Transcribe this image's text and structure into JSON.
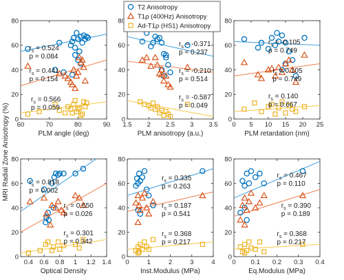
{
  "figure": {
    "ylabel": "MRI Radial Zone Anisotropy (%)"
  },
  "legend": {
    "position": "top-center",
    "entries": [
      {
        "label": "T2 Anisotropy",
        "marker": "circle",
        "color": "#0072BD"
      },
      {
        "label": "T1ρ (400Hz) Anisotropy",
        "marker": "triangle",
        "color": "#D95319"
      },
      {
        "label": "Ad-T1ρ (HS1) Anisotropy",
        "marker": "square",
        "color": "#EDB120"
      }
    ]
  },
  "colors": {
    "t2": "#0072BD",
    "t1rho": "#D95319",
    "adt1rho": "#EDB120",
    "t2_line": "#4DA6DF",
    "t1rho_line": "#F08A5E",
    "adt1rho_line": "#F7CE5B"
  },
  "chart_data": [
    {
      "type": "scatter",
      "xlabel": "PLM angle (deg)",
      "xlim": [
        60,
        90
      ],
      "ylim": [
        0,
        80
      ],
      "xticks": [
        "60",
        "70",
        "80",
        "90"
      ],
      "xtick_values": [
        60,
        70,
        80,
        90
      ],
      "yticks": [
        "0",
        "20",
        "40",
        "60",
        "80"
      ],
      "ytick_values": [
        0,
        20,
        40,
        60,
        80
      ],
      "grid": false,
      "series": [
        {
          "name": "T2 Anisotropy",
          "x": [
            62.5,
            73.5,
            77.5,
            78,
            78.5,
            79,
            79.5,
            80,
            80.5,
            81,
            81.5,
            82,
            82.5,
            83,
            83.5,
            79,
            80,
            81,
            78,
            75,
            72
          ],
          "y": [
            57,
            62,
            60,
            63,
            66,
            58,
            70,
            65,
            55,
            67,
            62,
            68,
            65,
            67,
            66,
            52,
            48,
            45,
            36,
            38,
            40
          ],
          "fit": [
            [
              60,
              55
            ],
            [
              90,
              69
            ]
          ]
        },
        {
          "name": "T1ρ (400Hz) Anisotropy",
          "x": [
            62.5,
            73.5,
            75.5,
            76.5,
            77.5,
            78.5,
            79.5,
            80,
            80.5,
            81.5,
            82,
            82.5,
            78,
            79,
            81
          ],
          "y": [
            43,
            37,
            35,
            33,
            30,
            40,
            35,
            38,
            50,
            48,
            42,
            31,
            28,
            25,
            46
          ],
          "fit": [
            [
              60,
              27
            ],
            [
              90,
              48
            ]
          ]
        },
        {
          "name": "Ad-T1ρ (HS1) Anisotropy",
          "x": [
            62.5,
            66.5,
            72,
            73.5,
            75.5,
            76.5,
            77.5,
            78.5,
            79.5,
            80.5,
            81.5,
            82,
            82.5,
            83,
            79,
            80,
            81,
            78
          ],
          "y": [
            4,
            6,
            12,
            7,
            5,
            10,
            8,
            12,
            6,
            9,
            4,
            14,
            10,
            13,
            15,
            8,
            3,
            5
          ],
          "fit": [
            [
              60,
              5
            ],
            [
              90,
              14
            ]
          ]
        }
      ],
      "stats": [
        {
          "rs": "0.524",
          "p": "0.084"
        },
        {
          "rs": "0.441",
          "p": "0.154"
        },
        {
          "rs": "0.566",
          "p": "0.059"
        }
      ]
    },
    {
      "type": "scatter",
      "xlabel": "PLM anisotropy (a.u.)",
      "xlim": [
        1.5,
        3.5
      ],
      "ylim": [
        0,
        80
      ],
      "xticks": [
        "1.5",
        "2",
        "2.5",
        "3",
        "3.5"
      ],
      "xtick_values": [
        1.5,
        2,
        2.5,
        3,
        3.5
      ],
      "yticks": [
        "0",
        "20",
        "40",
        "60",
        "80"
      ],
      "ytick_values": [
        0,
        20,
        40,
        60,
        80
      ],
      "grid": false,
      "series": [
        {
          "name": "T2 Anisotropy",
          "x": [
            1.85,
            1.95,
            2.05,
            2.1,
            2.15,
            2.2,
            2.25,
            2.3,
            2.35,
            2.4,
            2.45,
            2.5,
            2.3,
            2.35,
            2.4,
            2.9
          ],
          "y": [
            63,
            70,
            59,
            62,
            67,
            65,
            66,
            62,
            53,
            50,
            44,
            38,
            40,
            35,
            52,
            60
          ],
          "fit": [
            [
              1.5,
              67
            ],
            [
              3.5,
              51
            ]
          ]
        },
        {
          "name": "T1ρ (400Hz) Anisotropy",
          "x": [
            1.85,
            1.95,
            2.05,
            2.15,
            2.2,
            2.25,
            2.3,
            2.35,
            2.4,
            2.45,
            2.5,
            2.9,
            2.3
          ],
          "y": [
            48,
            50,
            43,
            50,
            44,
            37,
            40,
            31,
            35,
            28,
            26,
            42,
            36
          ],
          "fit": [
            [
              1.5,
              47
            ],
            [
              3.5,
              38
            ]
          ]
        },
        {
          "name": "Ad-T1ρ (HS1) Anisotropy",
          "x": [
            1.8,
            1.9,
            2.0,
            2.05,
            2.1,
            2.15,
            2.2,
            2.25,
            2.3,
            2.35,
            2.4,
            2.45,
            2.5,
            2.9
          ],
          "y": [
            14,
            12,
            11,
            9,
            13,
            8,
            10,
            5,
            7,
            3,
            6,
            4,
            2,
            12
          ],
          "fit": [
            [
              1.5,
              15
            ],
            [
              3.5,
              2
            ]
          ]
        }
      ],
      "stats": [
        {
          "rs": "-0.371",
          "p": "0.237"
        },
        {
          "rs": "-0.210",
          "p": "0.514"
        },
        {
          "rs": "-0.587",
          "p": "0.049"
        }
      ]
    },
    {
      "type": "scatter",
      "xlabel": "PLM retardation (nm)",
      "xlim": [
        0,
        25
      ],
      "ylim": [
        0,
        80
      ],
      "xticks": [
        "0",
        "5",
        "10",
        "15",
        "20",
        "25"
      ],
      "xtick_values": [
        0,
        5,
        10,
        15,
        20,
        25
      ],
      "yticks": [
        "0",
        "20",
        "40",
        "60",
        "80"
      ],
      "ytick_values": [
        0,
        20,
        40,
        60,
        80
      ],
      "grid": false,
      "series": [
        {
          "name": "T2 Anisotropy",
          "x": [
            3,
            7,
            8,
            10,
            11,
            12,
            12.5,
            13,
            14,
            15,
            16,
            17,
            18,
            14,
            15,
            20.5
          ],
          "y": [
            65,
            58,
            62,
            57,
            66,
            60,
            70,
            63,
            68,
            62,
            55,
            48,
            35,
            40,
            45,
            66
          ],
          "fit": [
            [
              0,
              63
            ],
            [
              25,
              60
            ]
          ]
        },
        {
          "name": "T1ρ (400Hz) Anisotropy",
          "x": [
            3,
            7,
            8,
            10,
            11,
            12,
            13,
            14,
            15,
            16,
            17,
            18,
            20.5
          ],
          "y": [
            46,
            36,
            33,
            40,
            41,
            35,
            42,
            38,
            45,
            48,
            40,
            30,
            52
          ],
          "fit": [
            [
              0,
              35
            ],
            [
              25,
              45
            ]
          ]
        },
        {
          "name": "Ad-T1ρ (HS1) Anisotropy",
          "x": [
            3,
            6,
            8,
            10,
            11,
            12,
            13,
            14,
            15,
            16,
            17,
            18,
            20.5
          ],
          "y": [
            8,
            13,
            6,
            10,
            12,
            4,
            9,
            14,
            5,
            11,
            8,
            6,
            10
          ],
          "fit": [
            [
              0,
              6
            ],
            [
              25,
              11
            ]
          ]
        }
      ],
      "stats": [
        {
          "rs": "-0.105",
          "p": "0.749"
        },
        {
          "rs": "0.105",
          "p": "0.749"
        },
        {
          "rs": "0.140",
          "p": "0.667"
        }
      ]
    },
    {
      "type": "scatter",
      "xlabel": "Optical Density",
      "xlim": [
        0.3,
        1.4
      ],
      "ylim": [
        0,
        80
      ],
      "xticks": [
        "0.4",
        "0.6",
        "0.8",
        "1",
        "1.2",
        "1.4"
      ],
      "xtick_values": [
        0.4,
        0.6,
        0.8,
        1.0,
        1.2,
        1.4
      ],
      "yticks": [
        "0",
        "20",
        "40",
        "60",
        "80"
      ],
      "ytick_values": [
        0,
        20,
        40,
        60,
        80
      ],
      "grid": false,
      "series": [
        {
          "name": "T2 Anisotropy",
          "x": [
            0.42,
            0.6,
            0.63,
            0.65,
            0.7,
            0.73,
            0.75,
            0.78,
            0.8,
            0.85,
            1.0,
            1.1,
            0.62,
            0.66,
            0.72
          ],
          "y": [
            62,
            55,
            32,
            36,
            60,
            65,
            68,
            67,
            68,
            68,
            68,
            72,
            28,
            30,
            40
          ],
          "fit": [
            [
              0.3,
              37
            ],
            [
              1.4,
              86
            ]
          ]
        },
        {
          "name": "T1ρ (400Hz) Anisotropy",
          "x": [
            0.42,
            0.6,
            0.63,
            0.68,
            0.7,
            0.75,
            0.78,
            0.82,
            0.85,
            1.0,
            1.05,
            1.1
          ],
          "y": [
            45,
            48,
            35,
            26,
            42,
            40,
            45,
            38,
            36,
            50,
            48,
            42
          ],
          "fit": [
            [
              0.3,
              20
            ],
            [
              1.4,
              60
            ]
          ]
        },
        {
          "name": "Ad-T1ρ (HS1) Anisotropy",
          "x": [
            0.4,
            0.55,
            0.62,
            0.65,
            0.7,
            0.72,
            0.78,
            0.8,
            0.85,
            1.0,
            1.05,
            1.1
          ],
          "y": [
            3,
            5,
            10,
            12,
            5,
            8,
            12,
            6,
            9,
            10,
            7,
            14
          ],
          "fit": [
            [
              0.3,
              3
            ],
            [
              1.4,
              14
            ]
          ]
        }
      ],
      "stats": [
        {
          "rs": "0.818",
          "p": "0.002"
        },
        {
          "rs": "0.650",
          "p": "0.026"
        },
        {
          "rs": "0.301",
          "p": "0.342"
        }
      ]
    },
    {
      "type": "scatter",
      "xlabel": "Inst.Modulus (MPa)",
      "xlim": [
        0,
        4
      ],
      "ylim": [
        0,
        80
      ],
      "xticks": [
        "0",
        "1",
        "2",
        "3",
        "4"
      ],
      "xtick_values": [
        0,
        1,
        2,
        3,
        4
      ],
      "yticks": [
        "0",
        "20",
        "40",
        "60",
        "80"
      ],
      "ytick_values": [
        0,
        20,
        40,
        60,
        80
      ],
      "grid": false,
      "series": [
        {
          "name": "T2 Anisotropy",
          "x": [
            0.4,
            0.45,
            0.5,
            0.55,
            0.6,
            0.7,
            0.8,
            0.9,
            1.0,
            1.2,
            0.5,
            0.6,
            3.5
          ],
          "y": [
            58,
            64,
            60,
            68,
            62,
            65,
            70,
            55,
            50,
            42,
            38,
            35,
            70
          ],
          "fit": [
            [
              0,
              50
            ],
            [
              4,
              72
            ]
          ]
        },
        {
          "name": "T1ρ (400Hz) Anisotropy",
          "x": [
            0.4,
            0.5,
            0.55,
            0.6,
            0.7,
            0.8,
            0.9,
            1.0,
            1.2,
            0.5,
            3.5
          ],
          "y": [
            44,
            50,
            42,
            38,
            48,
            52,
            40,
            35,
            45,
            28,
            50
          ],
          "fit": [
            [
              0,
              37
            ],
            [
              4,
              53
            ]
          ]
        },
        {
          "name": "Ad-T1ρ (HS1) Anisotropy",
          "x": [
            0.4,
            0.5,
            0.55,
            0.6,
            0.7,
            0.8,
            0.9,
            1.0,
            1.2,
            0.5,
            3.5
          ],
          "y": [
            5,
            8,
            4,
            10,
            6,
            12,
            8,
            6,
            14,
            3,
            10
          ],
          "fit": [
            [
              0,
              6
            ],
            [
              4,
              12
            ]
          ]
        }
      ],
      "stats": [
        {
          "rs": "0.335",
          "p": "0.263"
        },
        {
          "rs": "0.187",
          "p": "0.541"
        },
        {
          "rs": "0.368",
          "p": "0.217"
        }
      ]
    },
    {
      "type": "scatter",
      "xlabel": "Eq.Modulus (MPa)",
      "xlim": [
        0,
        0.4
      ],
      "ylim": [
        0,
        80
      ],
      "xticks": [
        "0",
        "0.1",
        "0.2",
        "0.3",
        "0.4"
      ],
      "xtick_values": [
        0,
        0.1,
        0.2,
        0.3,
        0.4
      ],
      "yticks": [
        "0",
        "20",
        "40",
        "60",
        "80"
      ],
      "ytick_values": [
        0,
        20,
        40,
        60,
        80
      ],
      "grid": false,
      "series": [
        {
          "name": "T2 Anisotropy",
          "x": [
            0.03,
            0.04,
            0.05,
            0.06,
            0.07,
            0.08,
            0.1,
            0.12,
            0.14,
            0.05,
            0.06,
            0.32
          ],
          "y": [
            36,
            62,
            58,
            68,
            60,
            70,
            65,
            68,
            60,
            40,
            30,
            70
          ],
          "fit": [
            [
              0,
              48
            ],
            [
              0.4,
              78
            ]
          ]
        },
        {
          "name": "T1ρ (400Hz) Anisotropy",
          "x": [
            0.03,
            0.04,
            0.05,
            0.06,
            0.07,
            0.08,
            0.1,
            0.12,
            0.14,
            0.05,
            0.32
          ],
          "y": [
            30,
            42,
            48,
            38,
            45,
            52,
            40,
            44,
            50,
            26,
            50
          ],
          "fit": [
            [
              0,
              33
            ],
            [
              0.4,
              55
            ]
          ]
        },
        {
          "name": "Ad-T1ρ (HS1) Anisotropy",
          "x": [
            0.03,
            0.04,
            0.05,
            0.06,
            0.07,
            0.08,
            0.1,
            0.12,
            0.14,
            0.05,
            0.32
          ],
          "y": [
            8,
            4,
            10,
            5,
            12,
            7,
            6,
            12,
            4,
            3,
            10
          ],
          "fit": [
            [
              0,
              6
            ],
            [
              0.4,
              10
            ]
          ]
        }
      ],
      "stats": [
        {
          "rs": "0.467",
          "p": "0.110"
        },
        {
          "rs": "0.390",
          "p": "0.189"
        },
        {
          "rs": "0.368",
          "p": "0.217"
        }
      ]
    }
  ]
}
